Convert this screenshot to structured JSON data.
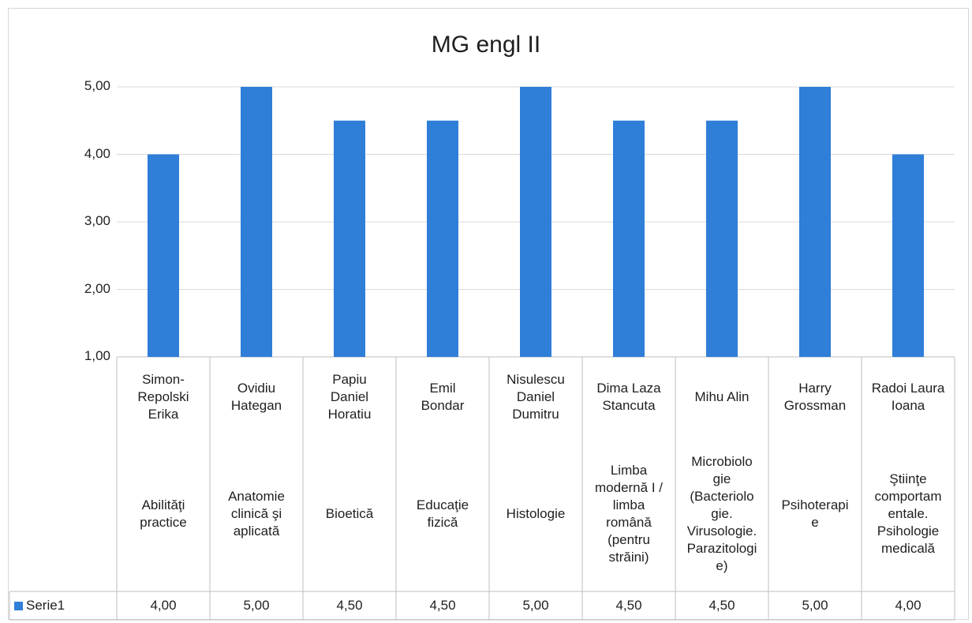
{
  "chart_data": {
    "type": "bar",
    "title": "MG engl II",
    "categories": [
      {
        "name": "Simon-\nRepolski\nErika",
        "subject": "Abilităţi\npractice"
      },
      {
        "name": "Ovidiu\nHategan",
        "subject": "Anatomie\nclinică şi\naplicată"
      },
      {
        "name": "Papiu\nDaniel\nHoratiu",
        "subject": "Bioetică"
      },
      {
        "name": "Emil\nBondar",
        "subject": "Educaţie\nfizică"
      },
      {
        "name": "Nisulescu\nDaniel\nDumitru",
        "subject": "Histologie"
      },
      {
        "name": "Dima Laza\nStancuta",
        "subject": "Limba\nmodernă I /\nlimba\nromână\n(pentru\nstrăini)"
      },
      {
        "name": "Mihu Alin",
        "subject": "Microbiolo\ngie\n(Bacteriolo\ngie.\nVirusologie.\nParazitologi\ne)"
      },
      {
        "name": "Harry\nGrossman",
        "subject": "Psihoterapi\ne"
      },
      {
        "name": "Radoi Laura\nIoana",
        "subject": "Ştiinţe\ncomportam\nentale.\nPsihologie\nmedicală"
      }
    ],
    "series": [
      {
        "name": "Serie1",
        "values": [
          4.0,
          5.0,
          4.5,
          4.5,
          5.0,
          4.5,
          4.5,
          5.0,
          4.0
        ],
        "color": "#2f7ed8"
      }
    ],
    "value_labels": [
      "4,00",
      "5,00",
      "4,50",
      "4,50",
      "5,00",
      "4,50",
      "4,50",
      "5,00",
      "4,00"
    ],
    "ylim": [
      1,
      5
    ],
    "yticks": [
      "1,00",
      "2,00",
      "3,00",
      "4,00",
      "5,00"
    ],
    "grid": true,
    "legend": "data-table"
  }
}
